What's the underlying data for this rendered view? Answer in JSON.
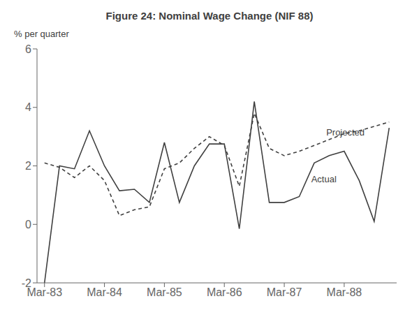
{
  "chart_data": {
    "type": "line",
    "title": "Figure 24: Nominal Wage Change (NIF 88)",
    "y_label": "% per quarter",
    "x": [
      0,
      1,
      2,
      3,
      4,
      5,
      6,
      7,
      8,
      9,
      10,
      11,
      12,
      13,
      14,
      15,
      16,
      17,
      18,
      19,
      20,
      21,
      22,
      23
    ],
    "xlim": [
      -0.5,
      23.5
    ],
    "xticks": [
      {
        "value": 0,
        "label": "Mar-83"
      },
      {
        "value": 4,
        "label": "Mar-84"
      },
      {
        "value": 8,
        "label": "Mar-85"
      },
      {
        "value": 12,
        "label": "Mar-86"
      },
      {
        "value": 16,
        "label": "Mar-87"
      },
      {
        "value": 20,
        "label": "Mar-88"
      }
    ],
    "ylim": [
      -2,
      6
    ],
    "yticks": [
      -2,
      0,
      2,
      4,
      6
    ],
    "grid": false,
    "series": [
      {
        "name": "Actual",
        "color": "#404040",
        "line_style": "solid",
        "values": [
          -2.0,
          2.0,
          1.9,
          3.2,
          2.0,
          1.15,
          1.2,
          0.75,
          2.8,
          0.75,
          2.0,
          2.75,
          2.75,
          -0.15,
          4.2,
          0.75,
          0.75,
          0.95,
          2.1,
          2.35,
          2.5,
          1.5,
          0.1,
          3.3
        ]
      },
      {
        "name": "Projected",
        "color": "#404040",
        "line_style": "dashed",
        "values": [
          2.1,
          1.95,
          1.6,
          2.0,
          1.5,
          0.3,
          0.5,
          0.6,
          1.9,
          2.1,
          2.6,
          3.0,
          2.7,
          1.3,
          3.8,
          2.6,
          2.35,
          2.5,
          2.7,
          2.9,
          3.1,
          3.2,
          3.35,
          3.5
        ]
      }
    ],
    "annotations": [
      {
        "text": "Projected",
        "x": 18.8,
        "y": 3.15,
        "color": "#404040"
      },
      {
        "text": "Actual",
        "x": 17.8,
        "y": 1.55,
        "color": "#404040"
      }
    ]
  }
}
